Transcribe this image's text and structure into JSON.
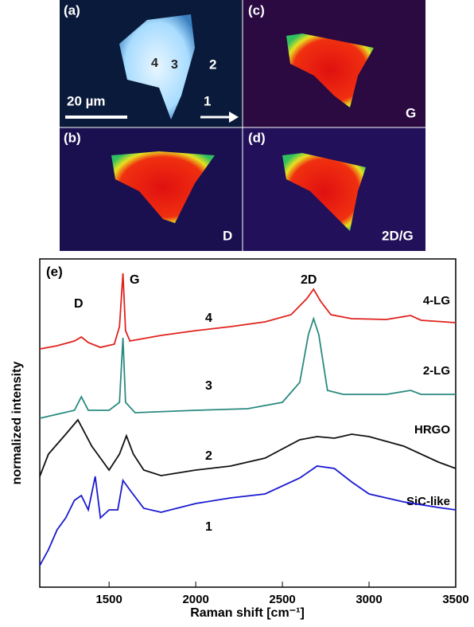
{
  "panels": {
    "a": {
      "label": "(a)",
      "points": [
        "4",
        "3",
        "2",
        "1"
      ],
      "scale": "20 µm"
    },
    "c": {
      "label": "(c)",
      "name": "G"
    },
    "b": {
      "label": "(b)",
      "name": "D"
    },
    "d": {
      "label": "(d)",
      "name": "2D/G"
    }
  },
  "chart_data": {
    "type": "line",
    "panel_label": "(e)",
    "xlabel": "Raman shift [cm⁻¹]",
    "ylabel": "normalized intensity",
    "xlim": [
      1100,
      3500
    ],
    "xticks": [
      1500,
      2000,
      2500,
      3000,
      3500
    ],
    "ylim": [
      0,
      412
    ],
    "peak_labels": [
      "D",
      "G",
      "2D"
    ],
    "series": [
      {
        "name": "4-LG",
        "number": "4",
        "color": "#e0221c",
        "x": [
          1100,
          1200,
          1300,
          1340,
          1380,
          1450,
          1530,
          1560,
          1580,
          1595,
          1620,
          1800,
          2000,
          2200,
          2400,
          2550,
          2640,
          2680,
          2720,
          2780,
          2900,
          3100,
          3240,
          3300,
          3500
        ],
        "values": [
          299,
          303,
          309,
          314,
          307,
          301,
          305,
          327,
          394,
          322,
          309,
          316,
          322,
          327,
          333,
          342,
          362,
          374,
          359,
          342,
          337,
          336,
          341,
          335,
          332
        ]
      },
      {
        "name": "2-LG",
        "number": "3",
        "color": "#2a8a80",
        "x": [
          1100,
          1300,
          1340,
          1380,
          1500,
          1560,
          1580,
          1595,
          1650,
          2000,
          2300,
          2500,
          2600,
          2650,
          2680,
          2710,
          2760,
          2850,
          3100,
          3240,
          3300,
          3500
        ],
        "values": [
          212,
          222,
          239,
          222,
          222,
          232,
          313,
          232,
          219,
          222,
          224,
          232,
          257,
          317,
          337,
          317,
          247,
          242,
          242,
          247,
          242,
          242
        ]
      },
      {
        "name": "HRGO",
        "number": "2",
        "color": "#111111",
        "x": [
          1100,
          1150,
          1250,
          1320,
          1400,
          1500,
          1560,
          1600,
          1640,
          1700,
          1800,
          2000,
          2200,
          2400,
          2600,
          2700,
          2800,
          2900,
          3000,
          3200,
          3400,
          3500
        ],
        "values": [
          139,
          167,
          192,
          210,
          177,
          147,
          167,
          190,
          167,
          147,
          140,
          147,
          152,
          162,
          185,
          189,
          187,
          192,
          189,
          177,
          157,
          149
        ]
      },
      {
        "name": "SiC-like",
        "number": "1",
        "color": "#1a1ad0",
        "x": [
          1100,
          1150,
          1200,
          1250,
          1300,
          1340,
          1380,
          1420,
          1450,
          1500,
          1550,
          1580,
          1620,
          1700,
          1800,
          2000,
          2200,
          2400,
          2600,
          2700,
          2800,
          2900,
          3000,
          3200,
          3400,
          3500
        ],
        "values": [
          27,
          47,
          72,
          87,
          109,
          115,
          97,
          139,
          87,
          97,
          97,
          134,
          122,
          99,
          94,
          105,
          112,
          117,
          137,
          152,
          149,
          132,
          117,
          107,
          100,
          97
        ]
      }
    ]
  }
}
